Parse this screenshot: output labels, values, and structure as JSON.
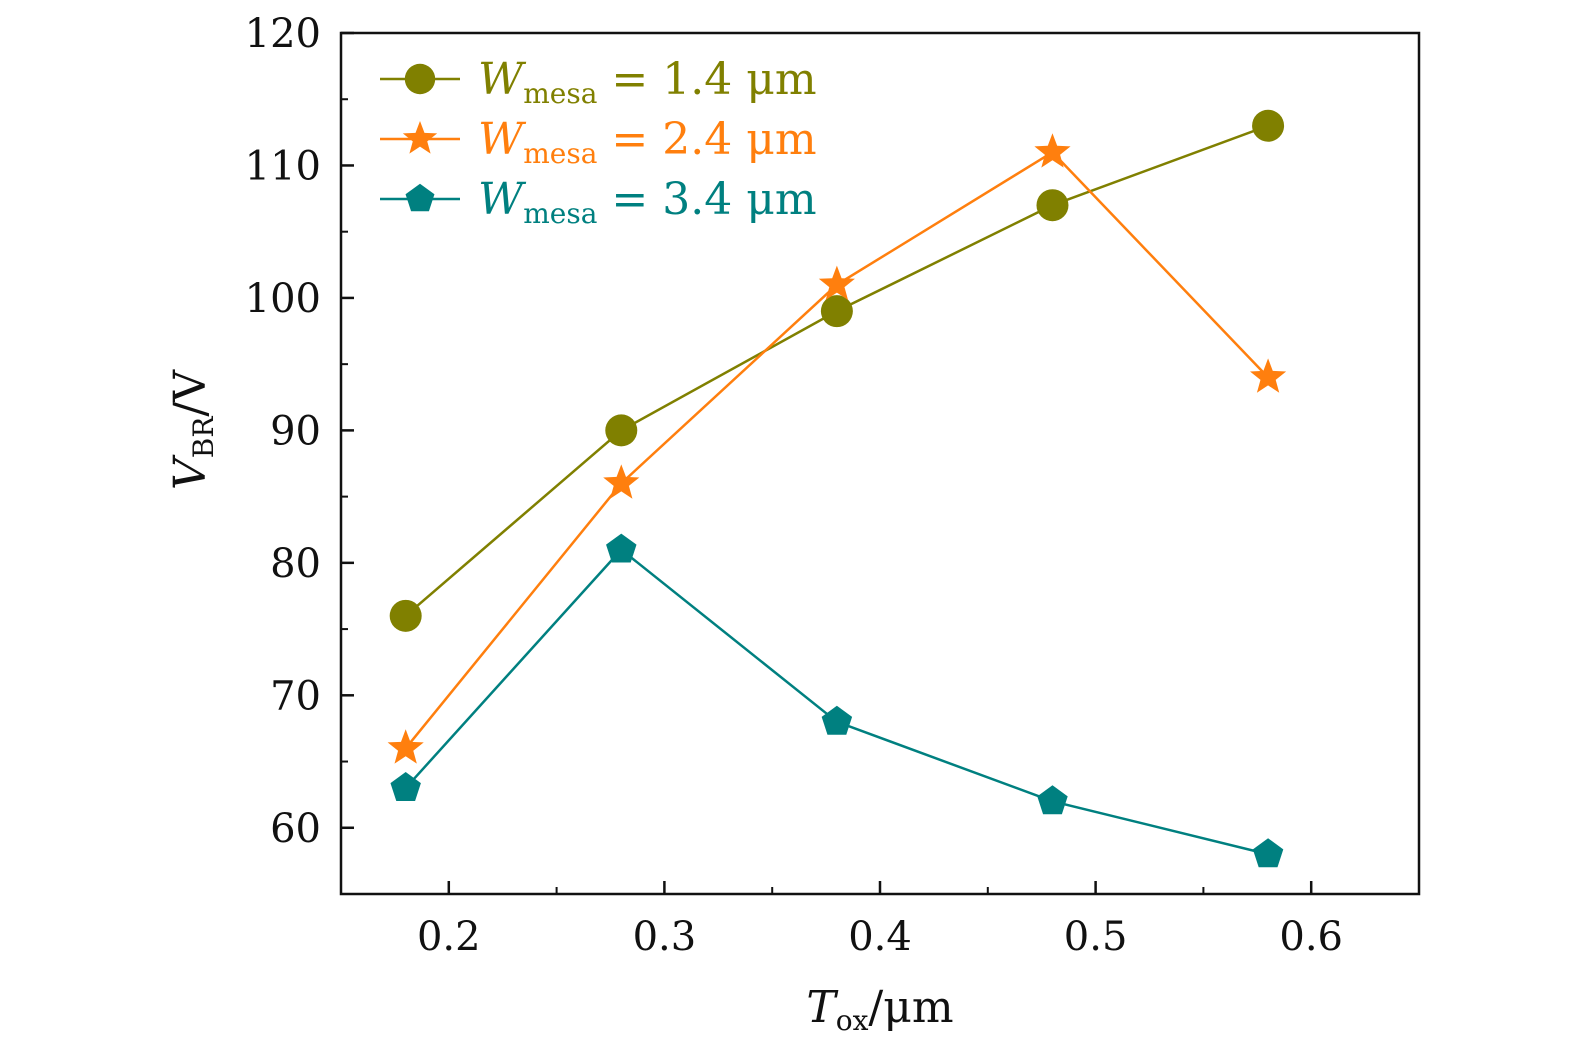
{
  "chart_data": {
    "type": "line",
    "xlabel": {
      "main": "T",
      "sub": "ox",
      "unit": "/μm"
    },
    "ylabel": {
      "main": "V",
      "sub": "BR",
      "unit": "/V"
    },
    "xlim": [
      0.15,
      0.65
    ],
    "ylim": [
      55,
      120
    ],
    "x_ticks": [
      0.2,
      0.3,
      0.4,
      0.5,
      0.6
    ],
    "x_tick_labels": [
      "0.2",
      "0.3",
      "0.4",
      "0.5",
      "0.6"
    ],
    "x_minor_ticks": [
      0.25,
      0.35,
      0.45,
      0.55
    ],
    "y_ticks": [
      60,
      70,
      80,
      90,
      100,
      110,
      120
    ],
    "y_tick_labels": [
      "60",
      "70",
      "80",
      "90",
      "100",
      "110",
      "120"
    ],
    "y_minor_ticks": [
      65,
      75,
      85,
      95,
      105,
      115
    ],
    "grid": false,
    "legend_position": "top-left",
    "x": [
      0.18,
      0.28,
      0.38,
      0.48,
      0.58
    ],
    "series": [
      {
        "name": {
          "main": "W",
          "sub": "mesa",
          "rest": " = 1.4 μm"
        },
        "values": [
          76,
          90,
          99,
          107,
          113
        ],
        "color": "#808000",
        "marker": "circle"
      },
      {
        "name": {
          "main": "W",
          "sub": "mesa",
          "rest": " = 2.4 μm"
        },
        "values": [
          66,
          86,
          101,
          111,
          94
        ],
        "color": "#ff7f0e",
        "marker": "star"
      },
      {
        "name": {
          "main": "W",
          "sub": "mesa",
          "rest": " = 3.4 μm"
        },
        "values": [
          63,
          81,
          68,
          62,
          58
        ],
        "color": "#008080",
        "marker": "pentagon"
      }
    ]
  }
}
